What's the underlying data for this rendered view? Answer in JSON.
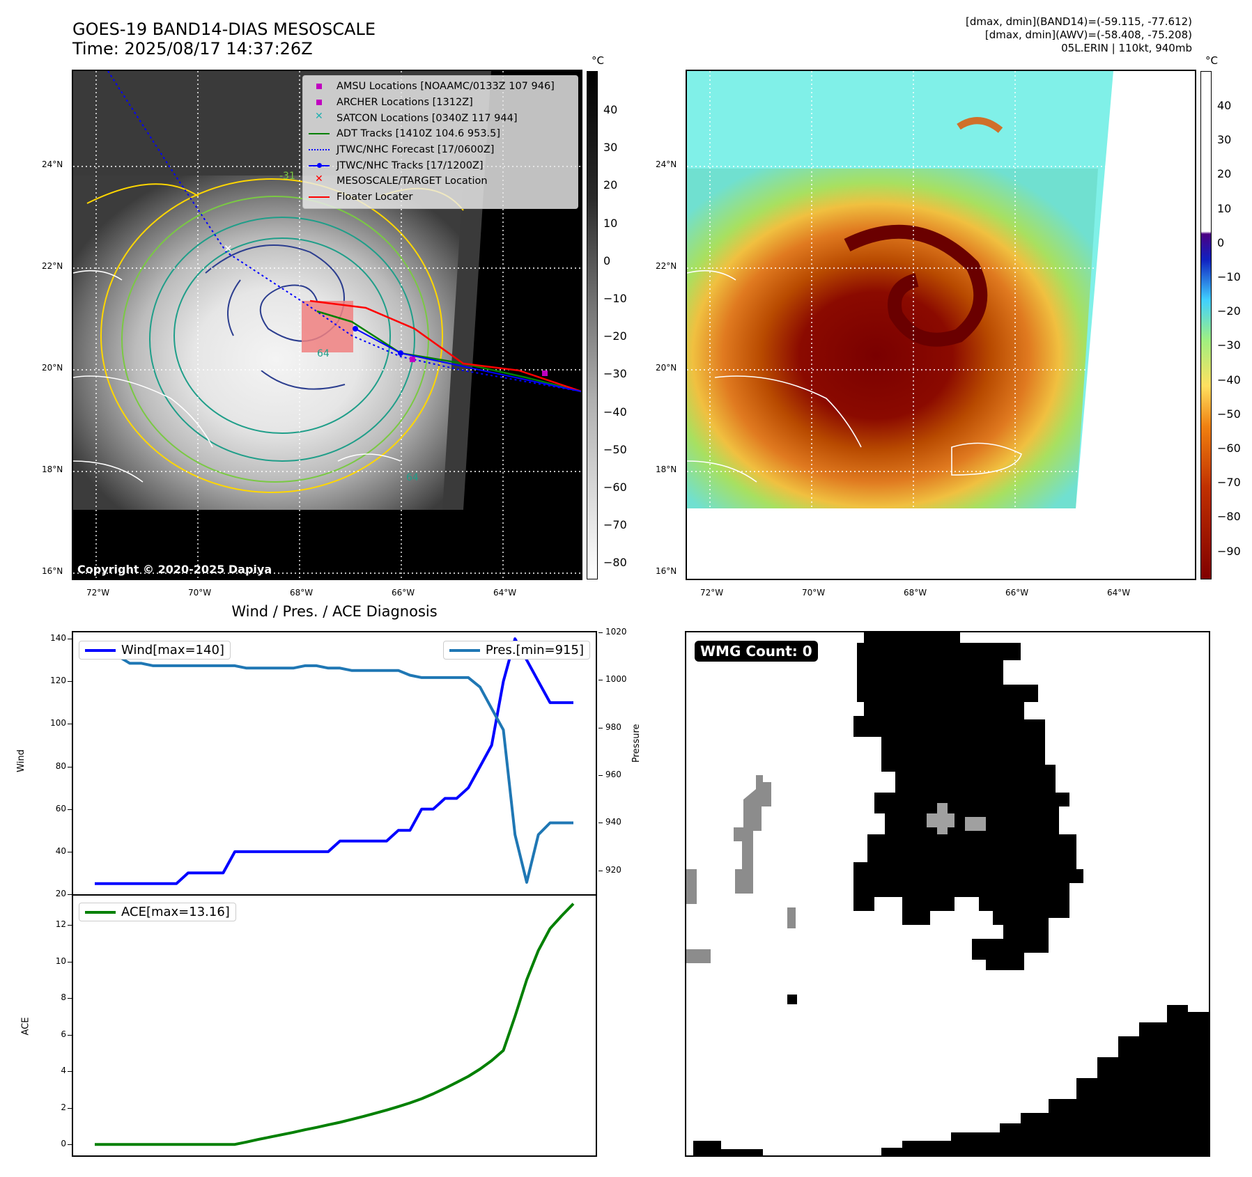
{
  "header": {
    "title_line1": "GOES-19 BAND14-DIAS MESOSCALE",
    "title_line2": "Time: 2025/08/17 14:37:26Z",
    "info_line1": "[dmax, dmin](BAND14)=(-59.115, -77.612)",
    "info_line2": "[dmax, dmin](AWV)=(-58.408, -75.208)",
    "info_line3": "05L.ERIN | 110kt, 940mb"
  },
  "map_axes": {
    "lat_labels": [
      "24°N",
      "22°N",
      "20°N",
      "18°N",
      "16°N"
    ],
    "lon_labels": [
      "72°W",
      "70°W",
      "68°W",
      "66°W",
      "64°W"
    ]
  },
  "ir_panel": {
    "colorbar_unit": "°C",
    "colorbar_ticks": [
      "40",
      "30",
      "20",
      "10",
      "0",
      "−10",
      "−20",
      "−30",
      "−40",
      "−50",
      "−60",
      "−70",
      "−80"
    ],
    "copyright": "Copyright © 2020-2025 Dapiya",
    "contour_labels": [
      "64",
      "64",
      "-31"
    ],
    "legend": [
      {
        "label": "AMSU Locations [NOAAMC/0133Z 107 946]",
        "symbol": "square",
        "color": "#c000c0"
      },
      {
        "label": "ARCHER Locations [1312Z]",
        "symbol": "square",
        "color": "#c000c0"
      },
      {
        "label": "SATCON Locations [0340Z 117 944]",
        "symbol": "x",
        "color": "#20b0b0"
      },
      {
        "label": "ADT Tracks [1410Z 104.6 953.5]",
        "symbol": "line",
        "color": "#008000"
      },
      {
        "label": "JTWC/NHC Forecast [17/0600Z]",
        "symbol": "dotted",
        "color": "#0000ff"
      },
      {
        "label": "JTWC/NHC Tracks [17/1200Z]",
        "symbol": "line-dot",
        "color": "#0000ff"
      },
      {
        "label": "MESOSCALE/TARGET Location",
        "symbol": "x",
        "color": "#ff0000"
      },
      {
        "label": "Floater Locater",
        "symbol": "line",
        "color": "#ff0000"
      }
    ]
  },
  "awv_panel": {
    "colorbar_unit": "°C",
    "colorbar_ticks": [
      "40",
      "30",
      "20",
      "10",
      "0",
      "−10",
      "−20",
      "−30",
      "−40",
      "−50",
      "−60",
      "−70",
      "−80",
      "−90"
    ]
  },
  "diag_panel": {
    "title": "Wind / Pres. / ACE Diagnosis",
    "wind_ylabel": "Wind",
    "pres_ylabel": "Pressure",
    "ace_ylabel": "ACE",
    "wind_legend": "Wind[max=140]",
    "pres_legend": "Pres.[min=915]",
    "ace_legend": "ACE[max=13.16]",
    "wind_color": "#0000ff",
    "pres_color": "#1f77b4",
    "ace_color": "#008000"
  },
  "wmg_panel": {
    "label": "WMG Count: 0"
  },
  "chart_data": [
    {
      "type": "line",
      "title": "Wind / Pres. / ACE Diagnosis",
      "ylabel": "Wind",
      "ylim": [
        20,
        143
      ],
      "yticks": [
        20,
        40,
        60,
        80,
        100,
        120,
        140
      ],
      "series": [
        {
          "name": "Wind[max=140]",
          "values": [
            25,
            25,
            25,
            25,
            25,
            25,
            25,
            25,
            30,
            30,
            30,
            30,
            40,
            40,
            40,
            40,
            40,
            40,
            40,
            40,
            40,
            45,
            45,
            45,
            45,
            45,
            50,
            50,
            60,
            60,
            65,
            65,
            70,
            80,
            90,
            120,
            140,
            130,
            120,
            110,
            110,
            110
          ]
        }
      ]
    },
    {
      "type": "line",
      "ylabel": "Pressure",
      "ylim": [
        910,
        1020
      ],
      "yticks": [
        920,
        940,
        960,
        980,
        1000,
        1020
      ],
      "series": [
        {
          "name": "Pres.[min=915]",
          "values": [
            1010,
            1010,
            1010,
            1007,
            1007,
            1006,
            1006,
            1006,
            1006,
            1006,
            1006,
            1006,
            1006,
            1005,
            1005,
            1005,
            1005,
            1005,
            1006,
            1006,
            1005,
            1005,
            1004,
            1004,
            1004,
            1004,
            1004,
            1002,
            1001,
            1001,
            1001,
            1001,
            1001,
            997,
            988,
            979,
            935,
            915,
            935,
            940,
            940,
            940
          ]
        }
      ]
    },
    {
      "type": "line",
      "ylabel": "ACE",
      "ylim": [
        -0.6,
        13.6
      ],
      "yticks": [
        0,
        2,
        4,
        6,
        8,
        10,
        12
      ],
      "series": [
        {
          "name": "ACE[max=13.16]",
          "values": [
            0,
            0,
            0,
            0,
            0,
            0,
            0,
            0,
            0,
            0,
            0,
            0,
            0,
            0.13,
            0.27,
            0.4,
            0.53,
            0.66,
            0.8,
            0.93,
            1.07,
            1.21,
            1.37,
            1.53,
            1.7,
            1.88,
            2.07,
            2.27,
            2.5,
            2.77,
            3.07,
            3.39,
            3.72,
            4.12,
            4.58,
            5.14,
            7.0,
            9.0,
            10.6,
            11.8,
            12.5,
            13.16
          ]
        }
      ]
    }
  ]
}
